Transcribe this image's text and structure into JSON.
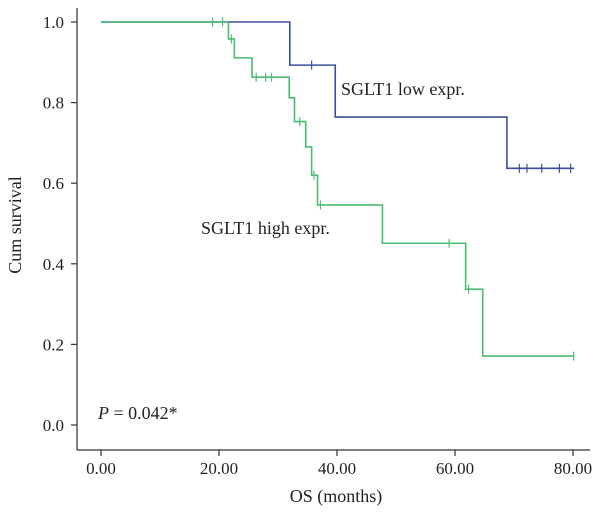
{
  "chart_data": {
    "type": "line",
    "chart_kind": "kaplan-meier-step",
    "title": "",
    "xlabel": "OS (months)",
    "ylabel": "Cum survival",
    "xlim": [
      0,
      80
    ],
    "ylim": [
      0,
      1
    ],
    "x_tick_labels": [
      "0.00",
      "20.00",
      "40.00",
      "60.00",
      "80.00"
    ],
    "y_tick_labels": [
      "0.0",
      "0.2",
      "0.4",
      "0.6",
      "0.8",
      "1.0"
    ],
    "grid": false,
    "series": [
      {
        "name": "SGLT1 low expr.",
        "color": "#3a4f9c",
        "steps": [
          {
            "x": 0,
            "y": 1.0
          },
          {
            "x": 32,
            "y": 0.893
          },
          {
            "x": 39.7,
            "y": 0.764
          },
          {
            "x": 68.8,
            "y": 0.637
          }
        ],
        "end_x": 80.2,
        "censored": [
          {
            "x": 35.7,
            "y": 0.893
          },
          {
            "x": 70.9,
            "y": 0.637
          },
          {
            "x": 72.2,
            "y": 0.637
          },
          {
            "x": 74.7,
            "y": 0.637
          },
          {
            "x": 77.7,
            "y": 0.637
          },
          {
            "x": 79.6,
            "y": 0.637
          }
        ]
      },
      {
        "name": "SGLT1 high expr.",
        "color": "#4cbb74",
        "steps": [
          {
            "x": 0,
            "y": 1.0
          },
          {
            "x": 21.6,
            "y": 0.958
          },
          {
            "x": 22.6,
            "y": 0.911
          },
          {
            "x": 25.6,
            "y": 0.863
          },
          {
            "x": 31.9,
            "y": 0.812
          },
          {
            "x": 32.8,
            "y": 0.753
          },
          {
            "x": 34.7,
            "y": 0.69
          },
          {
            "x": 35.7,
            "y": 0.62
          },
          {
            "x": 36.7,
            "y": 0.546
          },
          {
            "x": 47.7,
            "y": 0.451
          },
          {
            "x": 61.8,
            "y": 0.337
          },
          {
            "x": 64.7,
            "y": 0.171
          }
        ],
        "end_x": 80.1,
        "censored": [
          {
            "x": 18.9,
            "y": 1.0
          },
          {
            "x": 20.6,
            "y": 1.0
          },
          {
            "x": 22.1,
            "y": 0.958
          },
          {
            "x": 26.3,
            "y": 0.863
          },
          {
            "x": 27.9,
            "y": 0.863
          },
          {
            "x": 28.9,
            "y": 0.863
          },
          {
            "x": 33.7,
            "y": 0.753
          },
          {
            "x": 36.1,
            "y": 0.62
          },
          {
            "x": 37.2,
            "y": 0.546
          },
          {
            "x": 59.0,
            "y": 0.451
          },
          {
            "x": 62.3,
            "y": 0.337
          },
          {
            "x": 80.1,
            "y": 0.171
          }
        ]
      }
    ],
    "annotations": {
      "low_label": "SGLT1 low expr.",
      "high_label": "SGLT1 high expr.",
      "p_value_symbol": "P",
      "p_value_text": " = 0.042*"
    }
  }
}
